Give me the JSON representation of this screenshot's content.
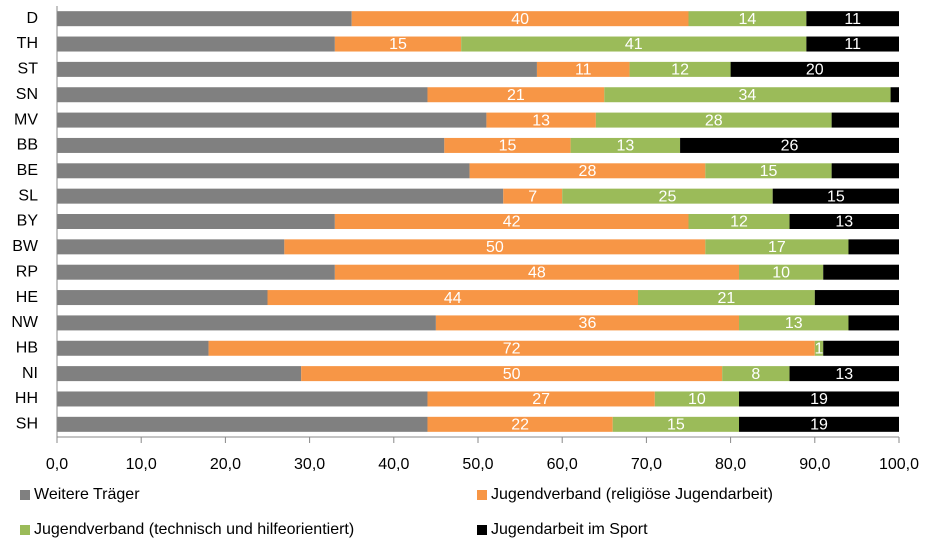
{
  "chart_data": {
    "type": "stacked_barh",
    "categories": [
      "D",
      "TH",
      "ST",
      "SN",
      "MV",
      "BB",
      "BE",
      "SL",
      "BY",
      "BW",
      "RP",
      "HE",
      "NW",
      "HB",
      "NI",
      "HH",
      "SH"
    ],
    "series": [
      {
        "name": "Weitere Träger",
        "color": "#808080",
        "values": [
          35,
          33,
          57,
          44,
          51,
          46,
          49,
          53,
          33,
          27,
          33,
          25,
          45,
          18,
          29,
          44,
          44
        ],
        "value_labels": [
          null,
          null,
          null,
          null,
          null,
          null,
          null,
          null,
          null,
          null,
          null,
          null,
          null,
          null,
          null,
          null,
          null
        ]
      },
      {
        "name": "Jugendverband (religiöse Jugendarbeit)",
        "color": "#f79646",
        "values": [
          40,
          15,
          11,
          21,
          13,
          15,
          28,
          7,
          42,
          50,
          48,
          44,
          36,
          72,
          50,
          27,
          22
        ],
        "value_labels": [
          "40",
          "15",
          "11",
          "21",
          "13",
          "15",
          "28",
          "7",
          "42",
          "50",
          "48",
          "44",
          "36",
          "72",
          "50",
          "27",
          "22"
        ]
      },
      {
        "name": "Jugendverband (technisch und hilfeorientiert)",
        "color": "#9bbb59",
        "values": [
          14,
          41,
          12,
          34,
          28,
          13,
          15,
          25,
          12,
          17,
          10,
          21,
          13,
          1,
          8,
          10,
          15
        ],
        "value_labels": [
          "14",
          "41",
          "12",
          "34",
          "28",
          "13",
          "15",
          "25",
          "12",
          "17",
          "10",
          "21",
          "13",
          "1",
          "8",
          "10",
          "15"
        ]
      },
      {
        "name": "Jugendarbeit im Sport",
        "color": "#000000",
        "values": [
          11,
          11,
          20,
          1,
          8,
          26,
          8,
          15,
          13,
          6,
          9,
          10,
          6,
          9,
          13,
          19,
          19
        ],
        "value_labels": [
          "11",
          "11",
          "20",
          null,
          null,
          "26",
          null,
          "15",
          "13",
          null,
          null,
          null,
          null,
          null,
          "13",
          "19",
          "19"
        ]
      }
    ],
    "xlim": [
      0,
      100
    ],
    "xticks": [
      {
        "value": 0,
        "label": "0,0"
      },
      {
        "value": 10,
        "label": "10,0"
      },
      {
        "value": 20,
        "label": "20,0"
      },
      {
        "value": 30,
        "label": "30,0"
      },
      {
        "value": 40,
        "label": "40,0"
      },
      {
        "value": 50,
        "label": "50,0"
      },
      {
        "value": 60,
        "label": "60,0"
      },
      {
        "value": 70,
        "label": "70,0"
      },
      {
        "value": 80,
        "label": "80,0"
      },
      {
        "value": 90,
        "label": "90,0"
      },
      {
        "value": 100,
        "label": "100,0"
      }
    ],
    "grid": false
  }
}
